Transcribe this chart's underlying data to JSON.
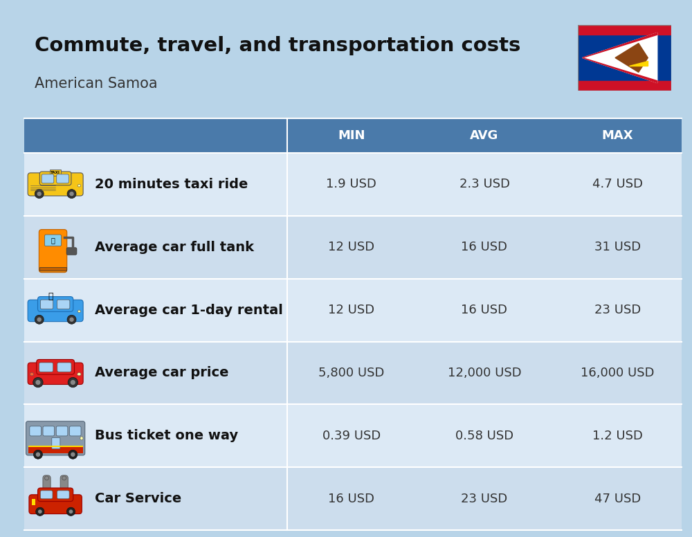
{
  "title": "Commute, travel, and transportation costs",
  "subtitle": "American Samoa",
  "background_color": "#b8d4e8",
  "header_color": "#4a7aaa",
  "header_text_color": "#ffffff",
  "row_colors": [
    "#dce9f5",
    "#ccdded"
  ],
  "columns": [
    "MIN",
    "AVG",
    "MAX"
  ],
  "rows": [
    {
      "label": "20 minutes taxi ride",
      "min": "1.9 USD",
      "avg": "2.3 USD",
      "max": "4.7 USD"
    },
    {
      "label": "Average car full tank",
      "min": "12 USD",
      "avg": "16 USD",
      "max": "31 USD"
    },
    {
      "label": "Average car 1-day rental",
      "min": "12 USD",
      "avg": "16 USD",
      "max": "23 USD"
    },
    {
      "label": "Average car price",
      "min": "5,800 USD",
      "avg": "12,000 USD",
      "max": "16,000 USD"
    },
    {
      "label": "Bus ticket one way",
      "min": "0.39 USD",
      "avg": "0.58 USD",
      "max": "1.2 USD"
    },
    {
      "label": "Car Service",
      "min": "16 USD",
      "avg": "23 USD",
      "max": "47 USD"
    }
  ],
  "title_fontsize": 21,
  "subtitle_fontsize": 15,
  "header_fontsize": 13,
  "cell_fontsize": 13,
  "label_fontsize": 14
}
